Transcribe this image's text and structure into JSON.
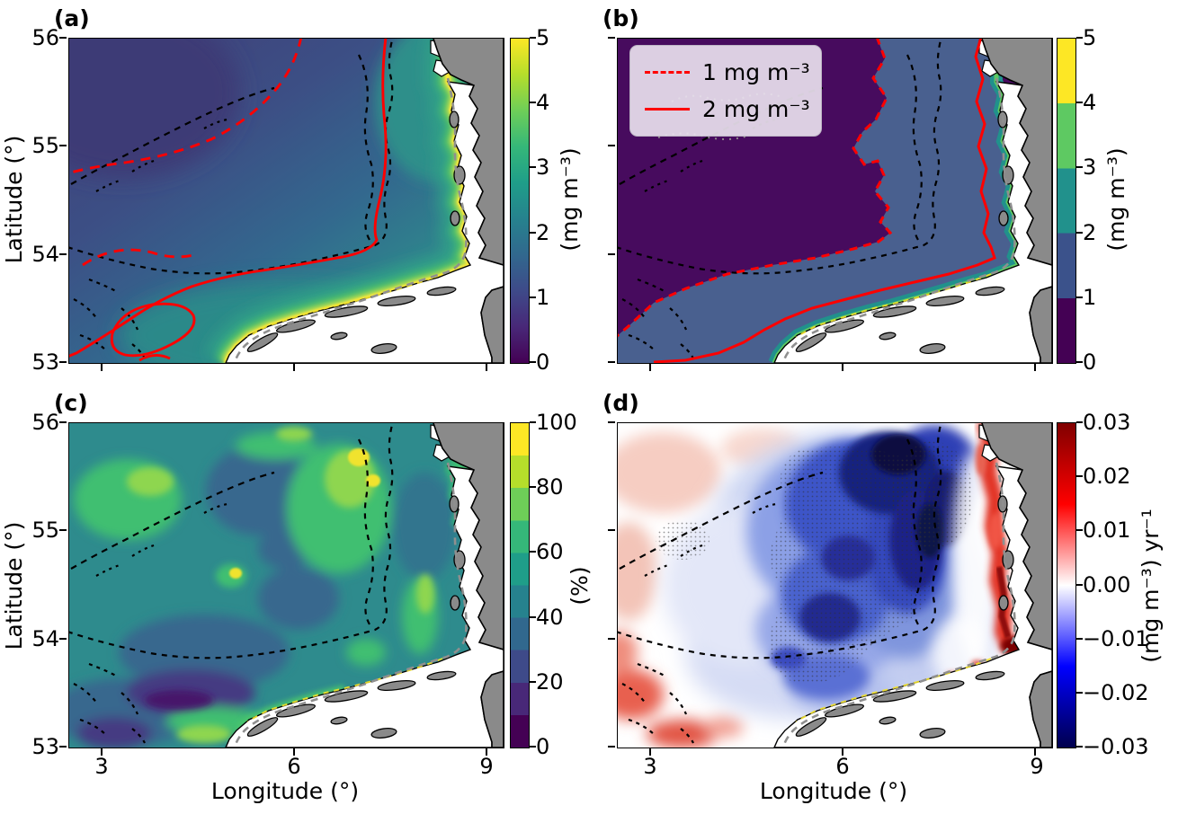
{
  "figure": {
    "kind": "2x2 panel map figure, southern North Sea / German Bight",
    "land_color": "#8a8a8a",
    "tidal_flats_color": "#ffffff",
    "contour_red": "#ff0000"
  },
  "axes": {
    "lon_label": "Longitude (°)",
    "lat_label": "Latitude (°)",
    "lon_ticks": [
      "3",
      "6",
      "9"
    ],
    "lat_ticks": [
      "56",
      "55",
      "54",
      "53"
    ]
  },
  "legend": {
    "items": [
      {
        "label": "1 mg m⁻³",
        "line_style": "dashed",
        "color": "#ff0000"
      },
      {
        "label": "2 mg m⁻³",
        "line_style": "solid",
        "color": "#ff0000"
      }
    ]
  },
  "chart_data": [
    {
      "label": "(a)",
      "type": "heatmap",
      "description": "Surface chlorophyll-a concentration: low (<1 mg m⁻³) dark blue-purple offshore in the northwest, increasing smoothly towards the coast, reaching 4–5 mg m⁻³ (green to yellow fringe) along the Wadden Sea edge; red dashed contour = 1 mg m⁻³ crossing the open sea, red solid contour = 2 mg m⁻³ nearer the coast with a closed loop in the southwest; land gray, tidal flats white; black dashed boundary lines offshore",
      "x_axis": {
        "label": "Longitude (°)",
        "tick_labels": [
          "3",
          "6",
          "9"
        ],
        "tick_values": [
          3,
          6,
          9
        ],
        "range": [
          2.5,
          9.2
        ]
      },
      "y_axis": {
        "label": "Latitude (°)",
        "tick_labels": [
          "56",
          "55",
          "54",
          "53"
        ],
        "tick_values": [
          56,
          55,
          54,
          53
        ],
        "range": [
          53,
          56
        ]
      },
      "colorbar": {
        "label": "(mg m⁻³)",
        "colormap": "viridis",
        "style": "continuous",
        "range": [
          0,
          5
        ],
        "tick_labels": [
          "5",
          "4",
          "3",
          "2",
          "1",
          "0"
        ],
        "tick_values": [
          5,
          4,
          3,
          2,
          1,
          0
        ]
      }
    },
    {
      "label": "(b)",
      "type": "heatmap",
      "description": "Same field binned in 1 mg m⁻³ classes: dark purple (0–1) over the open sea, slate-blue band (1–2) nearshore along the east and south coasts, thin teal (2–3) and green (3–4) fringes directly at the tidal flats; red dashed contour (1 mg m⁻³) follows the purple/blue boundary, red solid contour (2 mg m⁻³) runs close to the coast; legend box top-left",
      "x_axis": {
        "label": "Longitude (°)",
        "tick_labels": [
          "3",
          "6",
          "9"
        ],
        "tick_values": [
          3,
          6,
          9
        ],
        "range": [
          2.5,
          9.2
        ]
      },
      "y_axis": {
        "label": "Latitude (°)",
        "tick_labels": [
          "56",
          "55",
          "54",
          "53"
        ],
        "tick_values": [
          56,
          55,
          54,
          53
        ],
        "range": [
          53,
          56
        ]
      },
      "colorbar": {
        "label": "(mg m⁻³)",
        "colormap": "viridis",
        "style": "discrete",
        "n_bands": 5,
        "range": [
          0,
          5
        ],
        "tick_labels": [
          "5",
          "4",
          "3",
          "2",
          "1",
          "0"
        ],
        "tick_values": [
          5,
          4,
          3,
          2,
          1,
          0
        ]
      },
      "legend_items": [
        "1 mg m⁻³",
        "2 mg m⁻³"
      ]
    },
    {
      "label": "(c)",
      "type": "heatmap",
      "description": "Percentage map (10% bins): mostly teal 40–60% over the region, green 60–80% patches in the northwest, center and along a north–south ridge near 7°E, small yellow >80–100% spots near 7°E / 55.7°N, darker 10–30% indigo band in the southwest and dark patches in the south-center; coastal fringe green near the flats",
      "x_axis": {
        "label": "Longitude (°)",
        "tick_labels": [
          "3",
          "6",
          "9"
        ],
        "tick_values": [
          3,
          6,
          9
        ],
        "range": [
          2.5,
          9.2
        ]
      },
      "y_axis": {
        "label": "Latitude (°)",
        "tick_labels": [
          "56",
          "55",
          "54",
          "53"
        ],
        "tick_values": [
          56,
          55,
          54,
          53
        ],
        "range": [
          53,
          56
        ]
      },
      "colorbar": {
        "label": "(%)",
        "colormap": "viridis",
        "style": "discrete",
        "n_bands": 10,
        "range": [
          0,
          100
        ],
        "tick_labels": [
          "100",
          "80",
          "60",
          "40",
          "20",
          "0"
        ],
        "tick_values": [
          100,
          80,
          60,
          40,
          20,
          0
        ]
      }
    },
    {
      "label": "(d)",
      "type": "heatmap",
      "description": "Linear trend of chlorophyll: strong negative trend (blue to dark navy, ≤ −0.02 mg m⁻³ yr⁻¹) in a broad band offshore of the coast, darkest in the northeast; strong positive trend (red, ≥ +0.02, locally dark red) directly along the coast on the east side and red patches in the southwest corner; near-zero (white / pale) elsewhere; gray stippling marks the central negative region; black dashed boundary lines as in other panels",
      "x_axis": {
        "label": "Longitude (°)",
        "tick_labels": [
          "3",
          "6",
          "9"
        ],
        "tick_values": [
          3,
          6,
          9
        ],
        "range": [
          2.5,
          9.2
        ]
      },
      "y_axis": {
        "label": "Latitude (°)",
        "tick_labels": [
          "56",
          "55",
          "54",
          "53"
        ],
        "tick_values": [
          56,
          55,
          54,
          53
        ],
        "range": [
          53,
          56
        ]
      },
      "colorbar": {
        "label": "(mg m⁻³) yr⁻¹",
        "colormap": "seismic (blue-white-red)",
        "style": "continuous",
        "range": [
          -0.03,
          0.03
        ],
        "tick_labels": [
          "0.03",
          "0.02",
          "0.01",
          "0.00",
          "−0.01",
          "−0.02",
          "−0.03"
        ],
        "tick_values": [
          0.03,
          0.02,
          0.01,
          0,
          -0.01,
          -0.02,
          -0.03
        ]
      }
    }
  ]
}
